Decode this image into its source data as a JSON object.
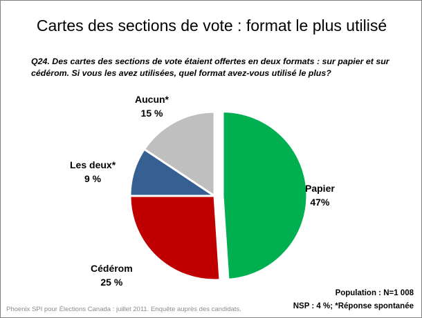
{
  "chart_data": {
    "type": "pie",
    "title": "Cartes des sections de vote : format le plus utilisé",
    "subtitle": "Q24. Des cartes des sections de vote étaient offertes en deux formats : sur papier et sur cédérom. Si vous les avez utilisées, quel format avez-vous utilisé le plus?",
    "slices": [
      {
        "label": "Papier",
        "value": 47,
        "value_label": "47%",
        "color": "#00b050",
        "exploded": true
      },
      {
        "label": "Cédérom",
        "value": 25,
        "value_label": "25 %",
        "color": "#c00000",
        "exploded": false
      },
      {
        "label": "Les deux*",
        "value": 9,
        "value_label": "9 %",
        "color": "#376092",
        "exploded": false
      },
      {
        "label": "Aucun*",
        "value": 15,
        "value_label": "15 %",
        "color": "#bfbfbf",
        "exploded": false
      }
    ],
    "start_angle_deg": 0,
    "direction": "clockwise"
  },
  "footer": {
    "source": "Phoenix SPI pour Élections Canada : juillet 2011. Enquête auprès des candidats.",
    "population": "Population : N=1 008",
    "nsp": "NSP : 4 %; *Réponse spontanée"
  }
}
